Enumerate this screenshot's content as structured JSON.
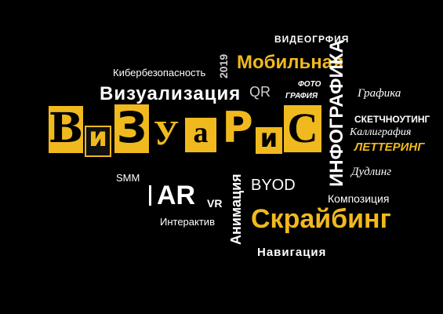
{
  "words": {
    "videography": "ВИДЕОГРФИЯ",
    "mobile": "Мобильная",
    "year": "2019",
    "cybersecurity": "Кибербезопасность",
    "photo": "ФОТО",
    "grafia": "ГРАФИЯ",
    "infographics": "ИНФОГРАФИКА",
    "graphics": "Графика",
    "qr": "QR",
    "visualization": "Визуализация",
    "sketchnoting": "СКЕТЧНОУТИНГ",
    "calligraphy": "Каллиграфия",
    "lettering": "ЛЕТТЕРИНГ",
    "smm": "SMM",
    "ar": "AR",
    "vr": "VR",
    "byod": "BYOD",
    "doodling": "Дудлинг",
    "composition": "Композиция",
    "animation": "Анимация",
    "interactive": "Интерактив",
    "scribing": "Скрайбинг",
    "navigation": "Навигация"
  },
  "logo": {
    "letters": [
      "В",
      "и",
      "З",
      "У",
      "а",
      "Р",
      "и",
      "С"
    ]
  },
  "colors": {
    "accent": "#f0b91e",
    "background": "#000000",
    "text": "#ffffff"
  }
}
